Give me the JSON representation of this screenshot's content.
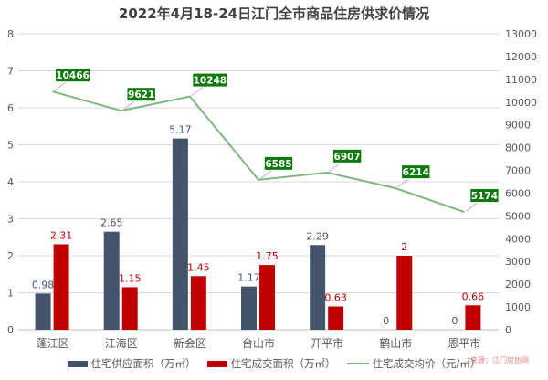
{
  "title": "2022年4月18-24日江门全市商品住房供求价情况",
  "source": "来源：江门房协网",
  "colors": {
    "supply": "#44546A",
    "deal": "#C00000",
    "price_line": "#7FB77E",
    "price_label_bg": "#0B7A0B",
    "grid": "#D9D9D9"
  },
  "legend": {
    "supply": "住宅供应面积（万㎡）",
    "deal": "住宅成交面积（万㎡）",
    "price": "住宅成交均价（元/㎡）"
  },
  "chart_data": {
    "type": "bar+line",
    "title": "2022年4月18-24日江门全市商品住房供求价情况",
    "categories": [
      "蓬江区",
      "江海区",
      "新会区",
      "台山市",
      "开平市",
      "鹤山市",
      "恩平市"
    ],
    "series": [
      {
        "name": "住宅供应面积（万㎡）",
        "type": "bar",
        "axis": "left",
        "values": [
          0.98,
          2.65,
          5.17,
          1.17,
          2.29,
          0,
          0
        ]
      },
      {
        "name": "住宅成交面积（万㎡）",
        "type": "bar",
        "axis": "left",
        "values": [
          2.31,
          1.15,
          1.45,
          1.75,
          0.63,
          2,
          0.66
        ]
      },
      {
        "name": "住宅成交均价（元/㎡）",
        "type": "line",
        "axis": "right",
        "values": [
          10466,
          9621,
          10248,
          6585,
          6907,
          6214,
          5174
        ]
      }
    ],
    "left_axis": {
      "ylim": [
        0,
        8
      ],
      "ticks": [
        0,
        1,
        2,
        3,
        4,
        5,
        6,
        7,
        8
      ]
    },
    "right_axis": {
      "ylim": [
        0,
        13000
      ],
      "ticks": [
        0,
        1000,
        2000,
        3000,
        4000,
        5000,
        6000,
        7000,
        8000,
        9000,
        10000,
        11000,
        12000,
        13000
      ]
    },
    "grid": true,
    "legend_position": "bottom"
  }
}
